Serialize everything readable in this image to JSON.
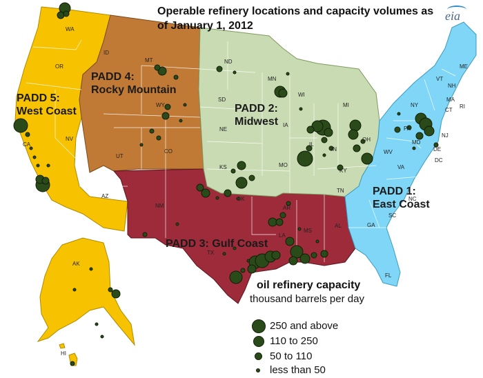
{
  "title": "Operable refinery locations and capacity volumes as of January 1, 2012",
  "logo": "eia",
  "regions": {
    "padd1": {
      "line1": "PADD 1:",
      "line2": "East Coast",
      "color": "#7fd6f7"
    },
    "padd2": {
      "line1": "PADD 2:",
      "line2": "Midwest",
      "color": "#c9dbb2"
    },
    "padd3": {
      "line1": "PADD 3:  Gulf Coast",
      "color": "#9e2b3a"
    },
    "padd4": {
      "line1": "PADD 4:",
      "line2": "Rocky Mountain",
      "color": "#c07a35"
    },
    "padd5": {
      "line1": "PADD 5:",
      "line2": "West Coast",
      "color": "#f7c200"
    }
  },
  "states": [
    "WA",
    "OR",
    "ID",
    "MT",
    "WY",
    "CA",
    "NV",
    "UT",
    "CO",
    "AZ",
    "NM",
    "ND",
    "SD",
    "NE",
    "KS",
    "OK",
    "MN",
    "WI",
    "IA",
    "MO",
    "IL",
    "IN",
    "MI",
    "OH",
    "KY",
    "TN",
    "AR",
    "LA",
    "MS",
    "AL",
    "ME",
    "VT",
    "NH",
    "MA",
    "RI",
    "CT",
    "NY",
    "PA",
    "NJ",
    "DE",
    "MD",
    "DC",
    "WV",
    "VA",
    "NC",
    "SC",
    "GA",
    "FL",
    "TX",
    "AK",
    "HI"
  ],
  "legend": {
    "title": "oil refinery capacity",
    "subtitle": "thousand barrels per day",
    "items": [
      {
        "label": "250 and above",
        "size": "large"
      },
      {
        "label": "110 to 250",
        "size": "medium"
      },
      {
        "label": "50 to 110",
        "size": "small"
      },
      {
        "label": "less than 50",
        "size": "tiny"
      }
    ],
    "dot_color": "#2b4a1a"
  }
}
